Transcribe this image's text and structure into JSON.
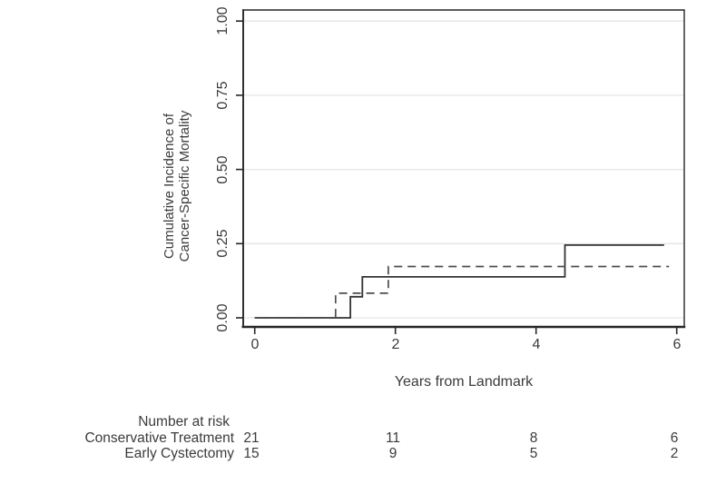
{
  "chart_data": {
    "type": "line",
    "subtype": "step-function-cumulative-incidence",
    "title": "",
    "xlabel": "Years from Landmark",
    "ylabel_lines": [
      "Cumulative Incidence of",
      "Cancer-Specific Mortality"
    ],
    "xlim": [
      0,
      6
    ],
    "ylim": [
      0,
      1
    ],
    "x_ticks": [
      "0",
      "2",
      "4",
      "6"
    ],
    "x_tick_values": [
      0,
      2,
      4,
      6
    ],
    "y_ticks": [
      "0.00",
      "0.25",
      "0.50",
      "0.75",
      "1.00"
    ],
    "y_tick_values": [
      0,
      0.25,
      0.5,
      0.75,
      1
    ],
    "grid": "horizontal-light",
    "legend": "none",
    "series": [
      {
        "name": "solid-line",
        "style": "solid",
        "steps": [
          [
            0,
            0
          ],
          [
            1.36,
            0
          ],
          [
            1.36,
            0.071
          ],
          [
            1.53,
            0.071
          ],
          [
            1.53,
            0.138
          ],
          [
            4.41,
            0.138
          ],
          [
            4.41,
            0.245
          ],
          [
            5.82,
            0.245
          ]
        ]
      },
      {
        "name": "dashed-line",
        "style": "dashed",
        "steps": [
          [
            0,
            0
          ],
          [
            1.15,
            0
          ],
          [
            1.15,
            0.083
          ],
          [
            1.9,
            0.083
          ],
          [
            1.9,
            0.173
          ],
          [
            5.89,
            0.173
          ]
        ]
      }
    ]
  },
  "number_at_risk": {
    "title": "Number at risk",
    "rows": [
      {
        "label": "Conservative Treatment",
        "counts": [
          "21",
          "11",
          "8",
          "6"
        ]
      },
      {
        "label": "Early Cystectomy",
        "counts": [
          "15",
          "9",
          "5",
          "2"
        ]
      }
    ]
  },
  "colors": {
    "background": "#ffffff",
    "text": "#3b3b3b",
    "axis": "#262626",
    "grid": "#e5e5e5",
    "solid_line": "#333333",
    "dashed_line": "#4d4d4d"
  }
}
